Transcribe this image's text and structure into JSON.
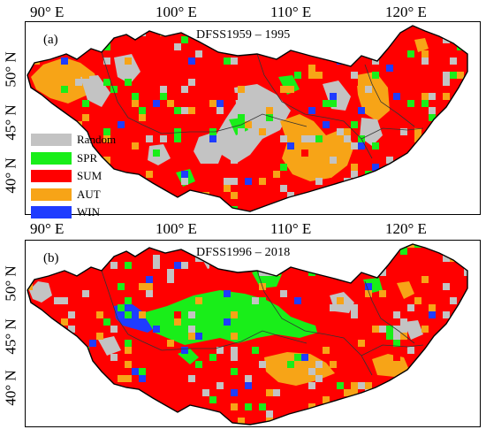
{
  "colors": {
    "random": "#c3c3c3",
    "spr": "#19ee19",
    "sum": "#ff0000",
    "aut": "#f7a417",
    "win": "#1f3cff",
    "border": "#000000"
  },
  "top_longitude_labels": [
    "90° E",
    "100° E",
    "110° E",
    "120° E"
  ],
  "mid_longitude_labels": [
    "90° E",
    "100° E",
    "110° E",
    "120° E"
  ],
  "latitude_labels_a": [
    "50° N",
    "45° N",
    "40° N"
  ],
  "latitude_labels_b": [
    "50° N",
    "45° N",
    "40° N"
  ],
  "panels": [
    {
      "id": "(a)",
      "title": "DFSS1959 – 1995",
      "dominant_class": "SUM"
    },
    {
      "id": "(b)",
      "title": "DFSS1996 – 2018",
      "dominant_class": "SUM"
    }
  ],
  "legend": [
    {
      "label": "Random",
      "color": "#c3c3c3"
    },
    {
      "label": "SPR",
      "color": "#19ee19"
    },
    {
      "label": "SUM",
      "color": "#ff0000"
    },
    {
      "label": "AUT",
      "color": "#f7a417"
    },
    {
      "label": "WIN",
      "color": "#1f3cff"
    }
  ]
}
